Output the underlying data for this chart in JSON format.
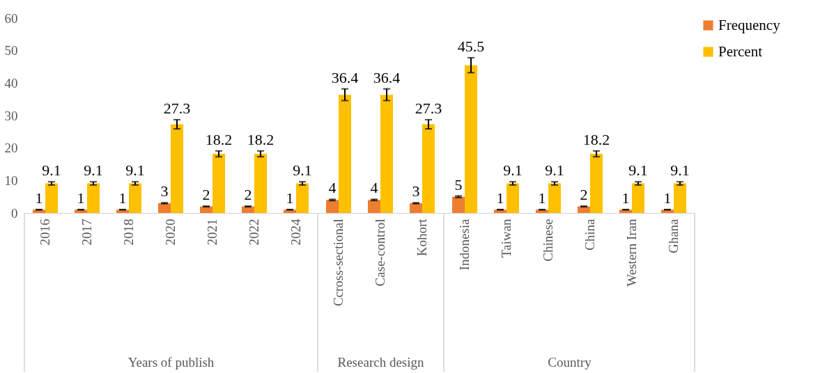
{
  "chart_data": [
    {
      "type": "bar",
      "xlabel": "Years of publish",
      "categories": [
        "2016",
        "2017",
        "2018",
        "2020",
        "2021",
        "2022",
        "2024"
      ],
      "series": [
        {
          "name": "Frequency",
          "color": "#ed7d31",
          "values": [
            1,
            1,
            1,
            3,
            2,
            2,
            1
          ],
          "errors": [
            0.05,
            0.05,
            0.05,
            0.15,
            0.1,
            0.1,
            0.05
          ]
        },
        {
          "name": "Percent",
          "color": "#ffc000",
          "values": [
            9.1,
            9.1,
            9.1,
            27.3,
            18.2,
            18.2,
            9.1
          ],
          "errors": [
            0.5,
            0.5,
            0.5,
            1.4,
            0.9,
            0.9,
            0.5
          ]
        }
      ],
      "ylim": [
        0,
        60
      ],
      "yticks": [
        0,
        10,
        20,
        30,
        40,
        50,
        60
      ],
      "data_labels": true,
      "legend": "right"
    },
    {
      "type": "bar",
      "xlabel": "Research design",
      "categories": [
        "Ccross-sectional",
        "Case-control",
        "Kohort"
      ],
      "series": [
        {
          "color": "#ed7d31",
          "values": [
            4,
            4,
            3
          ],
          "errors": [
            0.2,
            0.2,
            0.15
          ]
        },
        {
          "color": "#ffc000",
          "values": [
            36.4,
            36.4,
            27.3
          ],
          "errors": [
            1.8,
            1.8,
            1.4
          ]
        }
      ],
      "ylim": [
        0,
        60
      ],
      "yticks": [
        0,
        10,
        20,
        30,
        40,
        50,
        60
      ],
      "data_labels": true,
      "tick_labels": "x"
    },
    {
      "type": "bar",
      "xlabel": "Country",
      "categories": [
        "Indonesia",
        "Taiwan",
        "Chinese",
        "China",
        "Western Iran",
        "Ghana"
      ],
      "series": [
        {
          "color": "#ed7d31",
          "values": [
            5,
            1,
            1,
            2,
            1,
            1
          ],
          "errors": [
            0.25,
            0.05,
            0.05,
            0.1,
            0.05,
            0.05
          ]
        },
        {
          "color": "#ffc000",
          "values": [
            45.5,
            9.1,
            9.1,
            18.2,
            9.1,
            9.1
          ],
          "errors": [
            2.3,
            0.5,
            0.5,
            0.9,
            0.5,
            0.5
          ]
        }
      ],
      "ylim": [
        0,
        60
      ],
      "yticks": [
        0,
        10,
        20,
        30,
        40,
        50,
        60
      ],
      "data_labels": true,
      "tick_labels": "x"
    }
  ]
}
